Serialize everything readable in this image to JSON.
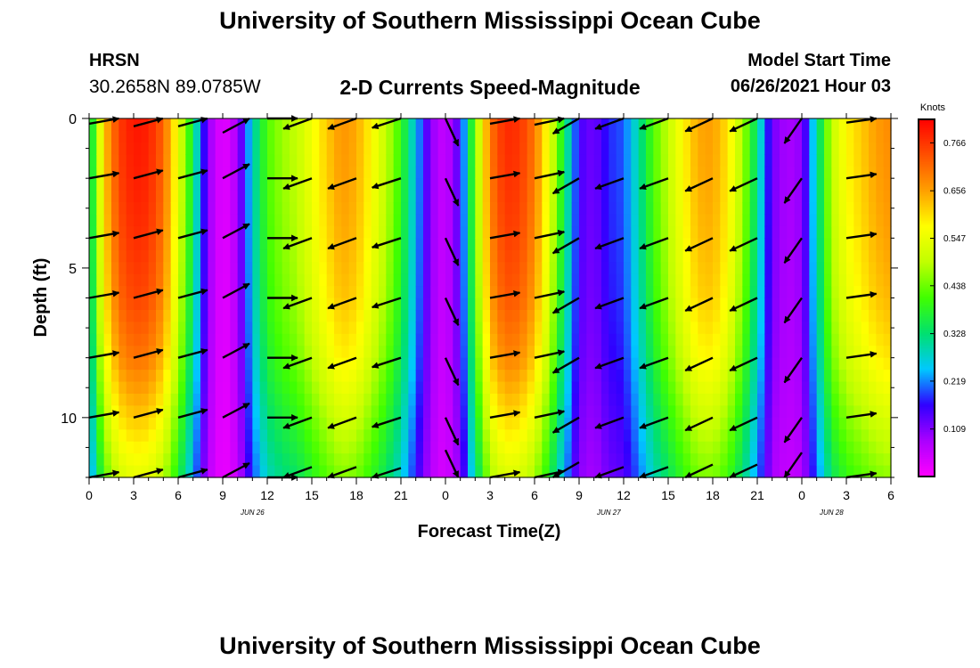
{
  "header": {
    "title": "University of Southern Mississippi Ocean Cube",
    "station": "HRSN",
    "coordinates": "30.2658N  89.0785W",
    "chart_heading": "2-D Currents Speed-Magnitude",
    "model_start_label": "Model Start Time",
    "model_start_value": "06/26/2021 Hour 03"
  },
  "footer": {
    "title": "University of Southern Mississippi Ocean Cube"
  },
  "chart_data": {
    "type": "heatmap",
    "title": "2-D Currents Speed-Magnitude",
    "xlabel": "Forecast Time(Z)",
    "ylabel": "Depth (ft)",
    "x_range_hours": [
      0,
      54
    ],
    "y_range_ft": [
      0,
      12
    ],
    "y_inverted": true,
    "x_tick_labels": [
      "0",
      "3",
      "6",
      "9",
      "12",
      "15",
      "18",
      "21",
      "0",
      "3",
      "6",
      "9",
      "12",
      "15",
      "18",
      "21",
      "0",
      "3",
      "6"
    ],
    "x_tick_hours": [
      0,
      3,
      6,
      9,
      12,
      15,
      18,
      21,
      24,
      27,
      30,
      33,
      36,
      39,
      42,
      45,
      48,
      51,
      54
    ],
    "y_ticks": [
      0,
      5,
      10
    ],
    "date_labels": [
      {
        "text": "JUN 26",
        "hour": 11
      },
      {
        "text": "JUN 27",
        "hour": 35
      },
      {
        "text": "JUN 28",
        "hour": 50
      }
    ],
    "colorbar": {
      "unit": "Knots",
      "min": 0.0,
      "max": 0.82,
      "tick_labels": [
        "0.766",
        "0.656",
        "0.547",
        "0.438",
        "0.328",
        "0.219",
        "0.109"
      ],
      "tick_values": [
        0.766,
        0.656,
        0.547,
        0.438,
        0.328,
        0.219,
        0.109
      ],
      "colors": [
        "#ff00ff",
        "#aa00ff",
        "#3000ff",
        "#00c8ff",
        "#00e070",
        "#40ff00",
        "#c0ff00",
        "#ffff00",
        "#ffa000",
        "#ff5000",
        "#ff0000"
      ]
    },
    "time_hours": [
      0,
      1,
      2,
      3,
      4,
      5,
      6,
      7,
      8,
      9,
      10,
      11,
      12,
      13,
      14,
      15,
      16,
      17,
      18,
      19,
      20,
      21,
      22,
      23,
      24,
      25,
      26,
      27,
      28,
      29,
      30,
      31,
      32,
      33,
      34,
      35,
      36,
      37,
      38,
      39,
      40,
      41,
      42,
      43,
      44,
      45,
      46,
      47,
      48,
      49,
      50,
      51,
      52,
      53,
      54
    ],
    "surface_speed_knots": [
      0.3,
      0.62,
      0.76,
      0.8,
      0.79,
      0.72,
      0.55,
      0.35,
      0.1,
      0.02,
      0.08,
      0.28,
      0.42,
      0.47,
      0.5,
      0.56,
      0.62,
      0.67,
      0.65,
      0.58,
      0.5,
      0.4,
      0.25,
      0.1,
      0.05,
      0.15,
      0.45,
      0.7,
      0.78,
      0.77,
      0.7,
      0.55,
      0.35,
      0.15,
      0.12,
      0.18,
      0.2,
      0.3,
      0.42,
      0.5,
      0.58,
      0.65,
      0.66,
      0.6,
      0.48,
      0.32,
      0.12,
      0.08,
      0.1,
      0.3,
      0.5,
      0.58,
      0.62,
      0.66,
      0.68
    ],
    "depth_ft": [
      0,
      2,
      4,
      6,
      8,
      10,
      12
    ],
    "depth_speed_factor": [
      1.0,
      0.99,
      0.97,
      0.94,
      0.88,
      0.78,
      0.68
    ],
    "vector_times_hours": [
      0,
      3,
      6,
      9,
      12,
      15,
      18,
      21,
      24,
      27,
      30,
      33,
      36,
      39,
      42,
      45,
      48,
      51
    ],
    "vector_directions_deg": [
      80,
      75,
      75,
      62,
      90,
      250,
      250,
      252,
      155,
      80,
      78,
      240,
      250,
      250,
      245,
      245,
      215,
      82
    ],
    "vector_depths_ft": [
      0,
      2,
      4,
      6,
      8,
      10,
      12
    ]
  }
}
